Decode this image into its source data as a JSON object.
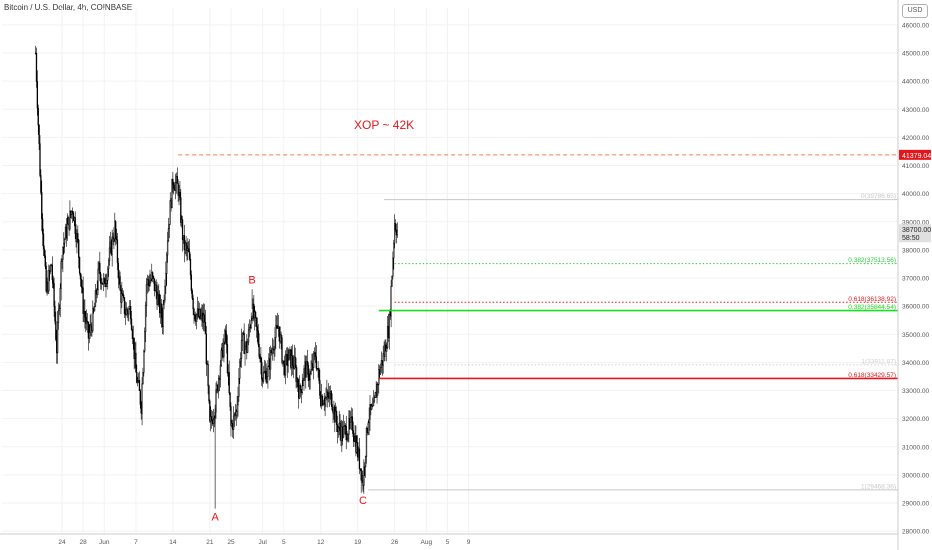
{
  "header": {
    "title": "Bitcoin / U.S. Dollar, 4h, COINBASE",
    "currency": "USD"
  },
  "chart_data": {
    "type": "candlestick",
    "y_axis": {
      "ylim": [
        27900,
        46600
      ],
      "ticks": [
        28000,
        29000,
        30000,
        31000,
        32000,
        33000,
        34000,
        35000,
        36000,
        37000,
        38000,
        39000,
        40000,
        41000,
        42000,
        43000,
        44000,
        45000,
        46000
      ],
      "tick_labels": [
        "28000.00",
        "29000.00",
        "30000.00",
        "31000.00",
        "32000.00",
        "33000.00",
        "34000.00",
        "35000.00",
        "36000.00",
        "37000.00",
        "38000.00",
        "39000.00",
        "40000.00",
        "41000.00",
        "42000.00",
        "43000.00",
        "44000.00",
        "45000.00",
        "46000.00"
      ]
    },
    "x_axis": {
      "ticks": [
        {
          "label": "24",
          "date": "2021-05-24"
        },
        {
          "label": "28",
          "date": "2021-05-28"
        },
        {
          "label": "Jun",
          "date": "2021-06-01"
        },
        {
          "label": "7",
          "date": "2021-06-07"
        },
        {
          "label": "14",
          "date": "2021-06-14"
        },
        {
          "label": "21",
          "date": "2021-06-21"
        },
        {
          "label": "25",
          "date": "2021-06-25"
        },
        {
          "label": "Jul",
          "date": "2021-07-01"
        },
        {
          "label": "5",
          "date": "2021-07-05"
        },
        {
          "label": "12",
          "date": "2021-07-12"
        },
        {
          "label": "19",
          "date": "2021-07-19"
        },
        {
          "label": "26",
          "date": "2021-07-26"
        },
        {
          "label": "Aug",
          "date": "2021-08-01"
        },
        {
          "label": "5",
          "date": "2021-08-05"
        },
        {
          "label": "9",
          "date": "2021-08-09"
        }
      ]
    },
    "price_path": [
      {
        "date": "2021-05-19",
        "price": 45000
      },
      {
        "date": "2021-05-20",
        "price": 40000
      },
      {
        "date": "2021-05-21",
        "price": 36500
      },
      {
        "date": "2021-05-22",
        "price": 37500
      },
      {
        "date": "2021-05-23",
        "price": 34500
      },
      {
        "date": "2021-05-24",
        "price": 38000
      },
      {
        "date": "2021-05-25",
        "price": 38800
      },
      {
        "date": "2021-05-26",
        "price": 39500
      },
      {
        "date": "2021-05-27",
        "price": 38200
      },
      {
        "date": "2021-05-28",
        "price": 36000
      },
      {
        "date": "2021-05-29",
        "price": 34900
      },
      {
        "date": "2021-05-30",
        "price": 35700
      },
      {
        "date": "2021-05-31",
        "price": 37300
      },
      {
        "date": "2021-06-01",
        "price": 36700
      },
      {
        "date": "2021-06-02",
        "price": 37800
      },
      {
        "date": "2021-06-03",
        "price": 38800
      },
      {
        "date": "2021-06-04",
        "price": 36500
      },
      {
        "date": "2021-06-05",
        "price": 35800
      },
      {
        "date": "2021-06-06",
        "price": 35900
      },
      {
        "date": "2021-06-07",
        "price": 33600
      },
      {
        "date": "2021-06-08",
        "price": 32500
      },
      {
        "date": "2021-06-09",
        "price": 36800
      },
      {
        "date": "2021-06-10",
        "price": 37000
      },
      {
        "date": "2021-06-11",
        "price": 36400
      },
      {
        "date": "2021-06-12",
        "price": 35500
      },
      {
        "date": "2021-06-13",
        "price": 38500
      },
      {
        "date": "2021-06-14",
        "price": 40500
      },
      {
        "date": "2021-06-15",
        "price": 40200
      },
      {
        "date": "2021-06-16",
        "price": 38200
      },
      {
        "date": "2021-06-17",
        "price": 37800
      },
      {
        "date": "2021-06-18",
        "price": 35800
      },
      {
        "date": "2021-06-19",
        "price": 35600
      },
      {
        "date": "2021-06-20",
        "price": 35500
      },
      {
        "date": "2021-06-21",
        "price": 31700
      },
      {
        "date": "2021-06-22",
        "price": 32500
      },
      {
        "date": "2021-06-23",
        "price": 34000
      },
      {
        "date": "2021-06-24",
        "price": 35000
      },
      {
        "date": "2021-06-25",
        "price": 31700
      },
      {
        "date": "2021-06-26",
        "price": 32200
      },
      {
        "date": "2021-06-27",
        "price": 34800
      },
      {
        "date": "2021-06-28",
        "price": 34500
      },
      {
        "date": "2021-06-29",
        "price": 35900
      },
      {
        "date": "2021-06-30",
        "price": 35000
      },
      {
        "date": "2021-07-01",
        "price": 33500
      },
      {
        "date": "2021-07-02",
        "price": 33700
      },
      {
        "date": "2021-07-03",
        "price": 34700
      },
      {
        "date": "2021-07-04",
        "price": 35300
      },
      {
        "date": "2021-07-05",
        "price": 33800
      },
      {
        "date": "2021-07-06",
        "price": 34200
      },
      {
        "date": "2021-07-07",
        "price": 33900
      },
      {
        "date": "2021-07-08",
        "price": 32900
      },
      {
        "date": "2021-07-09",
        "price": 33800
      },
      {
        "date": "2021-07-10",
        "price": 33500
      },
      {
        "date": "2021-07-11",
        "price": 34300
      },
      {
        "date": "2021-07-12",
        "price": 32800
      },
      {
        "date": "2021-07-13",
        "price": 32700
      },
      {
        "date": "2021-07-14",
        "price": 32800
      },
      {
        "date": "2021-07-15",
        "price": 31800
      },
      {
        "date": "2021-07-16",
        "price": 31500
      },
      {
        "date": "2021-07-17",
        "price": 31600
      },
      {
        "date": "2021-07-18",
        "price": 31800
      },
      {
        "date": "2021-07-19",
        "price": 30800
      },
      {
        "date": "2021-07-20",
        "price": 29800
      },
      {
        "date": "2021-07-21",
        "price": 32100
      },
      {
        "date": "2021-07-22",
        "price": 32300
      },
      {
        "date": "2021-07-23",
        "price": 33600
      },
      {
        "date": "2021-07-24",
        "price": 34300
      },
      {
        "date": "2021-07-25",
        "price": 35400
      },
      {
        "date": "2021-07-26",
        "price": 39000
      },
      {
        "date": "2021-07-26T12",
        "price": 38700
      }
    ],
    "last_price_label": "38700.00",
    "countdown_label": "58:50",
    "pattern_points": [
      {
        "label": "A",
        "date": "2021-06-22",
        "price": 28800
      },
      {
        "label": "B",
        "date": "2021-06-29",
        "price": 36600
      },
      {
        "label": "C",
        "date": "2021-07-20",
        "price": 29400
      }
    ],
    "annotations": [
      {
        "text": "XOP ~ 42K",
        "date": "2021-07-24",
        "price": 42300,
        "color": "#e4161b"
      }
    ],
    "levels": [
      {
        "name": "target",
        "price": 41379.04,
        "label": "41379.04",
        "start": "2021-06-15",
        "style": "dashed",
        "color": "#f07d4a",
        "axis_badge": true
      },
      {
        "name": "fib-0",
        "price": 39786.65,
        "label": "0(39786.65)",
        "start": "2021-07-24",
        "style": "solid",
        "color": "#c8c8c8"
      },
      {
        "name": "fib-0382",
        "price": 37513.56,
        "label": "0.382(37513.56)",
        "start": "2021-07-26",
        "style": "dotted",
        "color": "#2ecc40"
      },
      {
        "name": "fib-0618-upper",
        "price": 36138.92,
        "label": "0.618(36138.92)",
        "start": "2021-07-26",
        "style": "dotted",
        "color": "#e4161b"
      },
      {
        "name": "fib-0382-lower",
        "price": 35844.54,
        "label": "0.382(35844.54)",
        "start": "2021-07-23",
        "style": "solid",
        "color": "#19e01e"
      },
      {
        "name": "fib-1-upper",
        "price": 33911.87,
        "label": "1(33911.87)",
        "start": "2021-07-26",
        "style": "dotted",
        "color": "#d0d0d0"
      },
      {
        "name": "fib-0618-lower",
        "price": 33429.57,
        "label": "0.618(33429.57)",
        "start": "2021-07-23",
        "style": "solid",
        "color": "#e4161b"
      },
      {
        "name": "fib-1-lower",
        "price": 29468.36,
        "label": "1(29468.36)",
        "start": "2021-07-21",
        "style": "solid",
        "color": "#c8c8c8"
      }
    ],
    "colors": {
      "candle": "#000000",
      "background": "#ffffff",
      "grid": "#f2f2f2",
      "axis_text": "#555555",
      "pattern_label": "#e4161b",
      "last_price_badge": "#e0e0e0"
    },
    "grid": true,
    "legend": "none"
  }
}
